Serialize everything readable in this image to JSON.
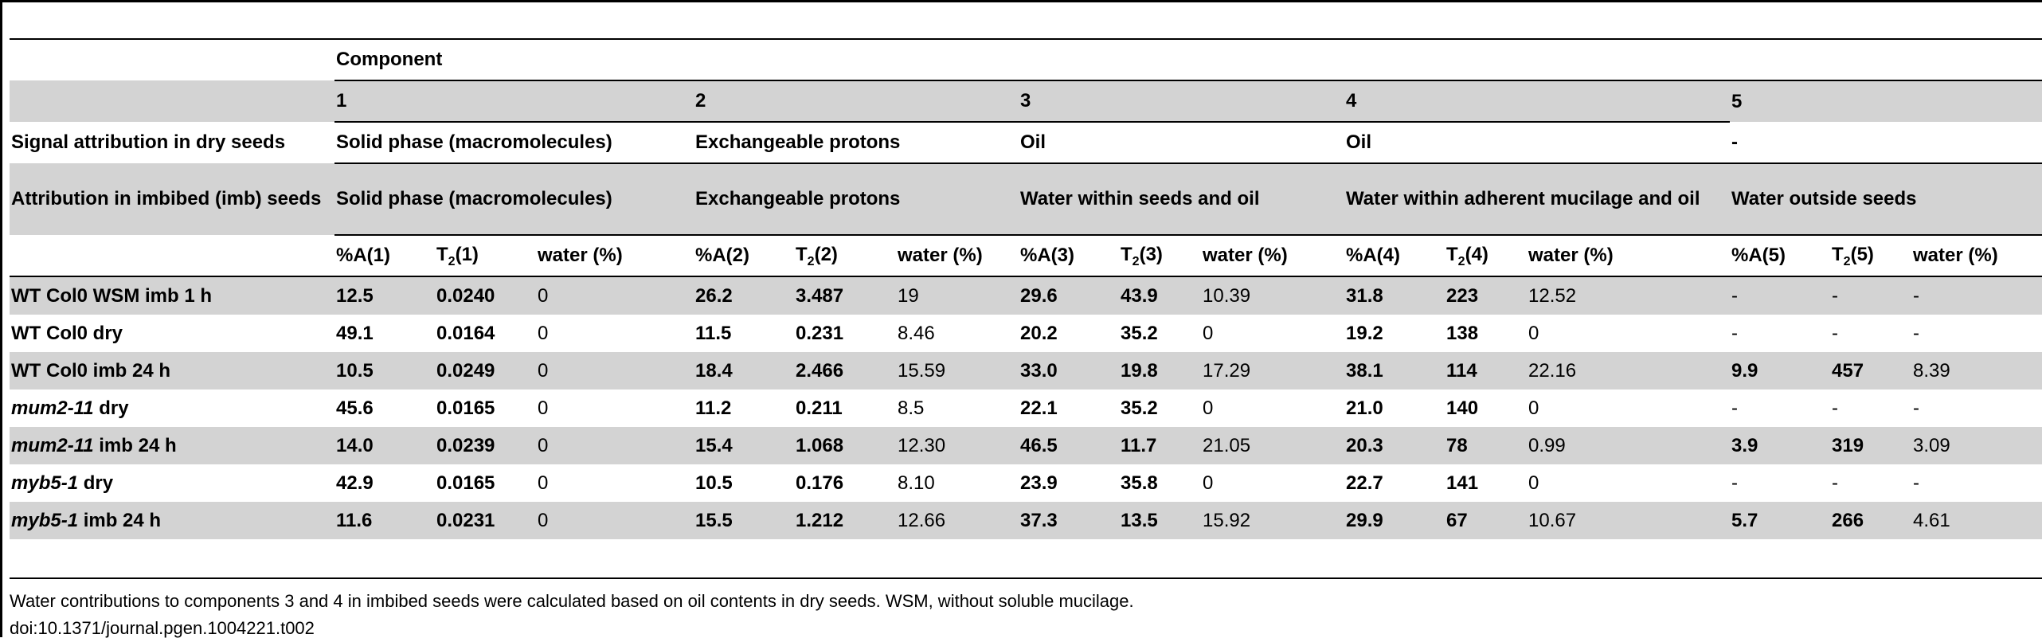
{
  "header": {
    "component_label": "Component",
    "numbers": [
      "1",
      "2",
      "3",
      "4",
      "5"
    ],
    "signal_label": "Signal attribution in dry seeds",
    "signal": [
      "Solid phase (macromolecules)",
      "Exchangeable protons",
      "Oil",
      "Oil",
      "-"
    ],
    "imb_label": "Attribution in imbibed (imb) seeds",
    "imb": [
      "Solid phase (macromolecules)",
      "Exchangeable protons",
      "Water within seeds and oil",
      "Water within adherent mucilage and oil",
      "Water outside seeds"
    ],
    "col_a": [
      "%A(1)",
      "%A(2)",
      "%A(3)",
      "%A(4)",
      "%A(5)"
    ],
    "col_t_prefix": "T",
    "col_t_sub": "2",
    "col_t_suffix": [
      "(1)",
      "(2)",
      "(3)",
      "(4)",
      "(5)"
    ],
    "col_w": "water (%)"
  },
  "rows": [
    {
      "italic": "",
      "rest": "WT Col0 WSM imb 1 h",
      "values": [
        "12.5",
        "0.0240",
        "0",
        "26.2",
        "3.487",
        "19",
        "29.6",
        "43.9",
        "10.39",
        "31.8",
        "223",
        "12.52",
        "-",
        "-",
        "-"
      ]
    },
    {
      "italic": "",
      "rest": "WT Col0 dry",
      "values": [
        "49.1",
        "0.0164",
        "0",
        "11.5",
        "0.231",
        "8.46",
        "20.2",
        "35.2",
        "0",
        "19.2",
        "138",
        "0",
        "-",
        "-",
        "-"
      ]
    },
    {
      "italic": "",
      "rest": "WT Col0 imb 24 h",
      "values": [
        "10.5",
        "0.0249",
        "0",
        "18.4",
        "2.466",
        "15.59",
        "33.0",
        "19.8",
        "17.29",
        "38.1",
        "114",
        "22.16",
        "9.9",
        "457",
        "8.39"
      ]
    },
    {
      "italic": "mum2-11",
      "rest": " dry",
      "values": [
        "45.6",
        "0.0165",
        "0",
        "11.2",
        "0.211",
        "8.5",
        "22.1",
        "35.2",
        "0",
        "21.0",
        "140",
        "0",
        "-",
        "-",
        "-"
      ]
    },
    {
      "italic": "mum2-11",
      "rest": " imb 24 h",
      "values": [
        "14.0",
        "0.0239",
        "0",
        "15.4",
        "1.068",
        "12.30",
        "46.5",
        "11.7",
        "21.05",
        "20.3",
        "78",
        "0.99",
        "3.9",
        "319",
        "3.09"
      ]
    },
    {
      "italic": "myb5-1",
      "rest": " dry",
      "values": [
        "42.9",
        "0.0165",
        "0",
        "10.5",
        "0.176",
        "8.10",
        "23.9",
        "35.8",
        "0",
        "22.7",
        "141",
        "0",
        "-",
        "-",
        "-"
      ]
    },
    {
      "italic": "myb5-1",
      "rest": " imb 24 h",
      "values": [
        "11.6",
        "0.0231",
        "0",
        "15.5",
        "1.212",
        "12.66",
        "37.3",
        "13.5",
        "15.92",
        "29.9",
        "67",
        "10.67",
        "5.7",
        "266",
        "4.61"
      ]
    }
  ],
  "footer": {
    "note": "Water contributions to components 3 and 4 in imbibed seeds were calculated based on oil contents in dry seeds. WSM, without soluble mucilage.",
    "doi": "doi:10.1371/journal.pgen.1004221.t002"
  }
}
